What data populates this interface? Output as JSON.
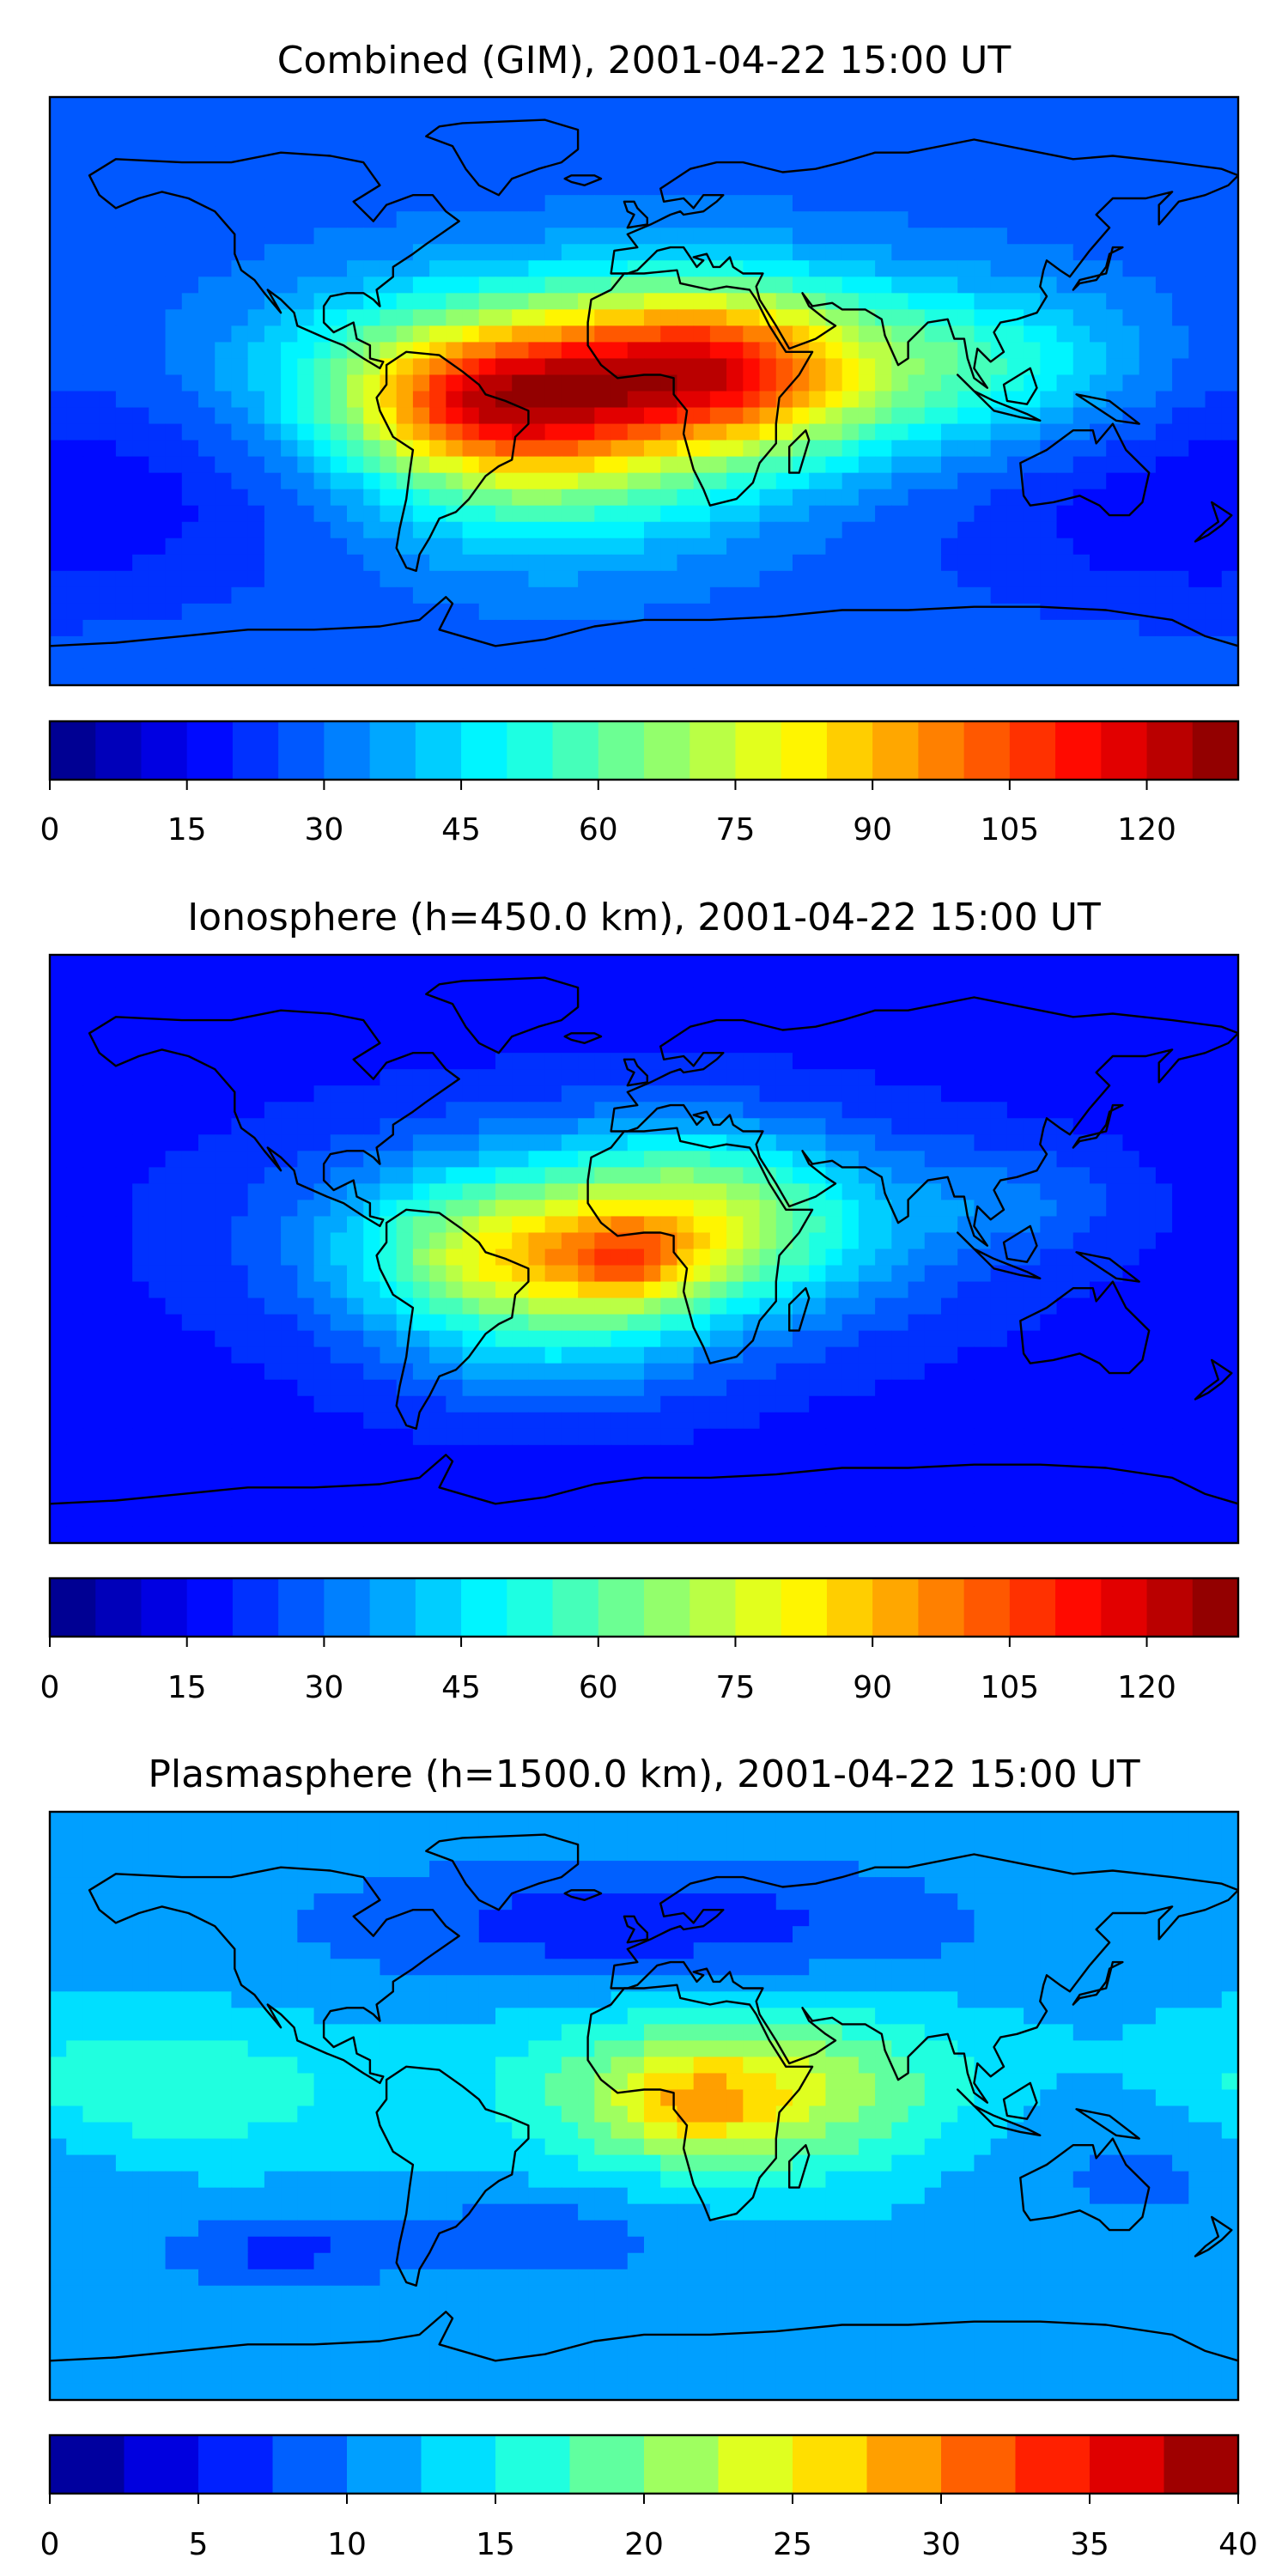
{
  "panels": [
    {
      "title": "Combined (GIM), 2001-04-22 15:00 UT",
      "colorbar": {
        "vmin": 0,
        "vmax": 130,
        "levels": 26,
        "ticks": [
          "0",
          "15",
          "30",
          "45",
          "60",
          "75",
          "90",
          "105",
          "120"
        ],
        "tick_values": [
          0,
          15,
          30,
          45,
          60,
          75,
          90,
          105,
          120
        ]
      },
      "field": {
        "base": 28,
        "blobs": [
          {
            "lon": -10,
            "lat": 6,
            "amp": 55,
            "slon": 70,
            "slat": 20
          },
          {
            "lon": -48,
            "lat": -5,
            "amp": 45,
            "slon": 30,
            "slat": 15
          },
          {
            "lon": 22,
            "lat": 6,
            "amp": 40,
            "slon": 32,
            "slat": 18
          },
          {
            "lon": -30,
            "lat": -30,
            "amp": 22,
            "slon": 40,
            "slat": 18
          },
          {
            "lon": 110,
            "lat": 10,
            "amp": 14,
            "slon": 30,
            "slat": 15
          },
          {
            "lon": -140,
            "lat": -10,
            "amp": -8,
            "slon": 50,
            "slat": 30
          },
          {
            "lon": 160,
            "lat": -40,
            "amp": -10,
            "slon": 50,
            "slat": 20
          }
        ]
      }
    },
    {
      "title": "Ionosphere  (h=450.0 km), 2001-04-22 15:00 UT",
      "colorbar": {
        "vmin": 0,
        "vmax": 130,
        "levels": 26,
        "ticks": [
          "0",
          "15",
          "30",
          "45",
          "60",
          "75",
          "90",
          "105",
          "120"
        ],
        "tick_values": [
          0,
          15,
          30,
          45,
          60,
          75,
          90,
          105,
          120
        ]
      },
      "field": {
        "base": 18,
        "blobs": [
          {
            "lon": -10,
            "lat": 5,
            "amp": 40,
            "slon": 60,
            "slat": 22
          },
          {
            "lon": -45,
            "lat": -3,
            "amp": 30,
            "slon": 28,
            "slat": 14
          },
          {
            "lon": -5,
            "lat": -5,
            "amp": 25,
            "slon": 15,
            "slat": 10
          },
          {
            "lon": 20,
            "lat": 10,
            "amp": 25,
            "slon": 30,
            "slat": 18
          },
          {
            "lon": -30,
            "lat": -30,
            "amp": 15,
            "slon": 35,
            "slat": 15
          },
          {
            "lon": 110,
            "lat": 15,
            "amp": 10,
            "slon": 25,
            "slat": 12
          }
        ]
      }
    },
    {
      "title": "Plasmasphere (h=1500.0 km), 2001-04-22 15:00 UT",
      "colorbar": {
        "vmin": 0,
        "vmax": 40,
        "levels": 16,
        "ticks": [
          "0",
          "5",
          "10",
          "15",
          "20",
          "25",
          "30",
          "35",
          "40"
        ],
        "tick_values": [
          0,
          5,
          10,
          15,
          20,
          25,
          30,
          35,
          40
        ]
      },
      "field": {
        "base": 12,
        "blobs": [
          {
            "lon": 30,
            "lat": 5,
            "amp": 12,
            "slon": 45,
            "slat": 18
          },
          {
            "lon": 15,
            "lat": 0,
            "amp": 6,
            "slon": 18,
            "slat": 10
          },
          {
            "lon": -150,
            "lat": 5,
            "amp": 6,
            "slon": 40,
            "slat": 15
          },
          {
            "lon": -110,
            "lat": -45,
            "amp": -5,
            "slon": 25,
            "slat": 8
          },
          {
            "lon": -30,
            "lat": -40,
            "amp": -4,
            "slon": 30,
            "slat": 10
          },
          {
            "lon": 0,
            "lat": 55,
            "amp": -6,
            "slon": 70,
            "slat": 15
          },
          {
            "lon": 150,
            "lat": -15,
            "amp": -3,
            "slon": 40,
            "slat": 20
          }
        ]
      }
    }
  ]
}
